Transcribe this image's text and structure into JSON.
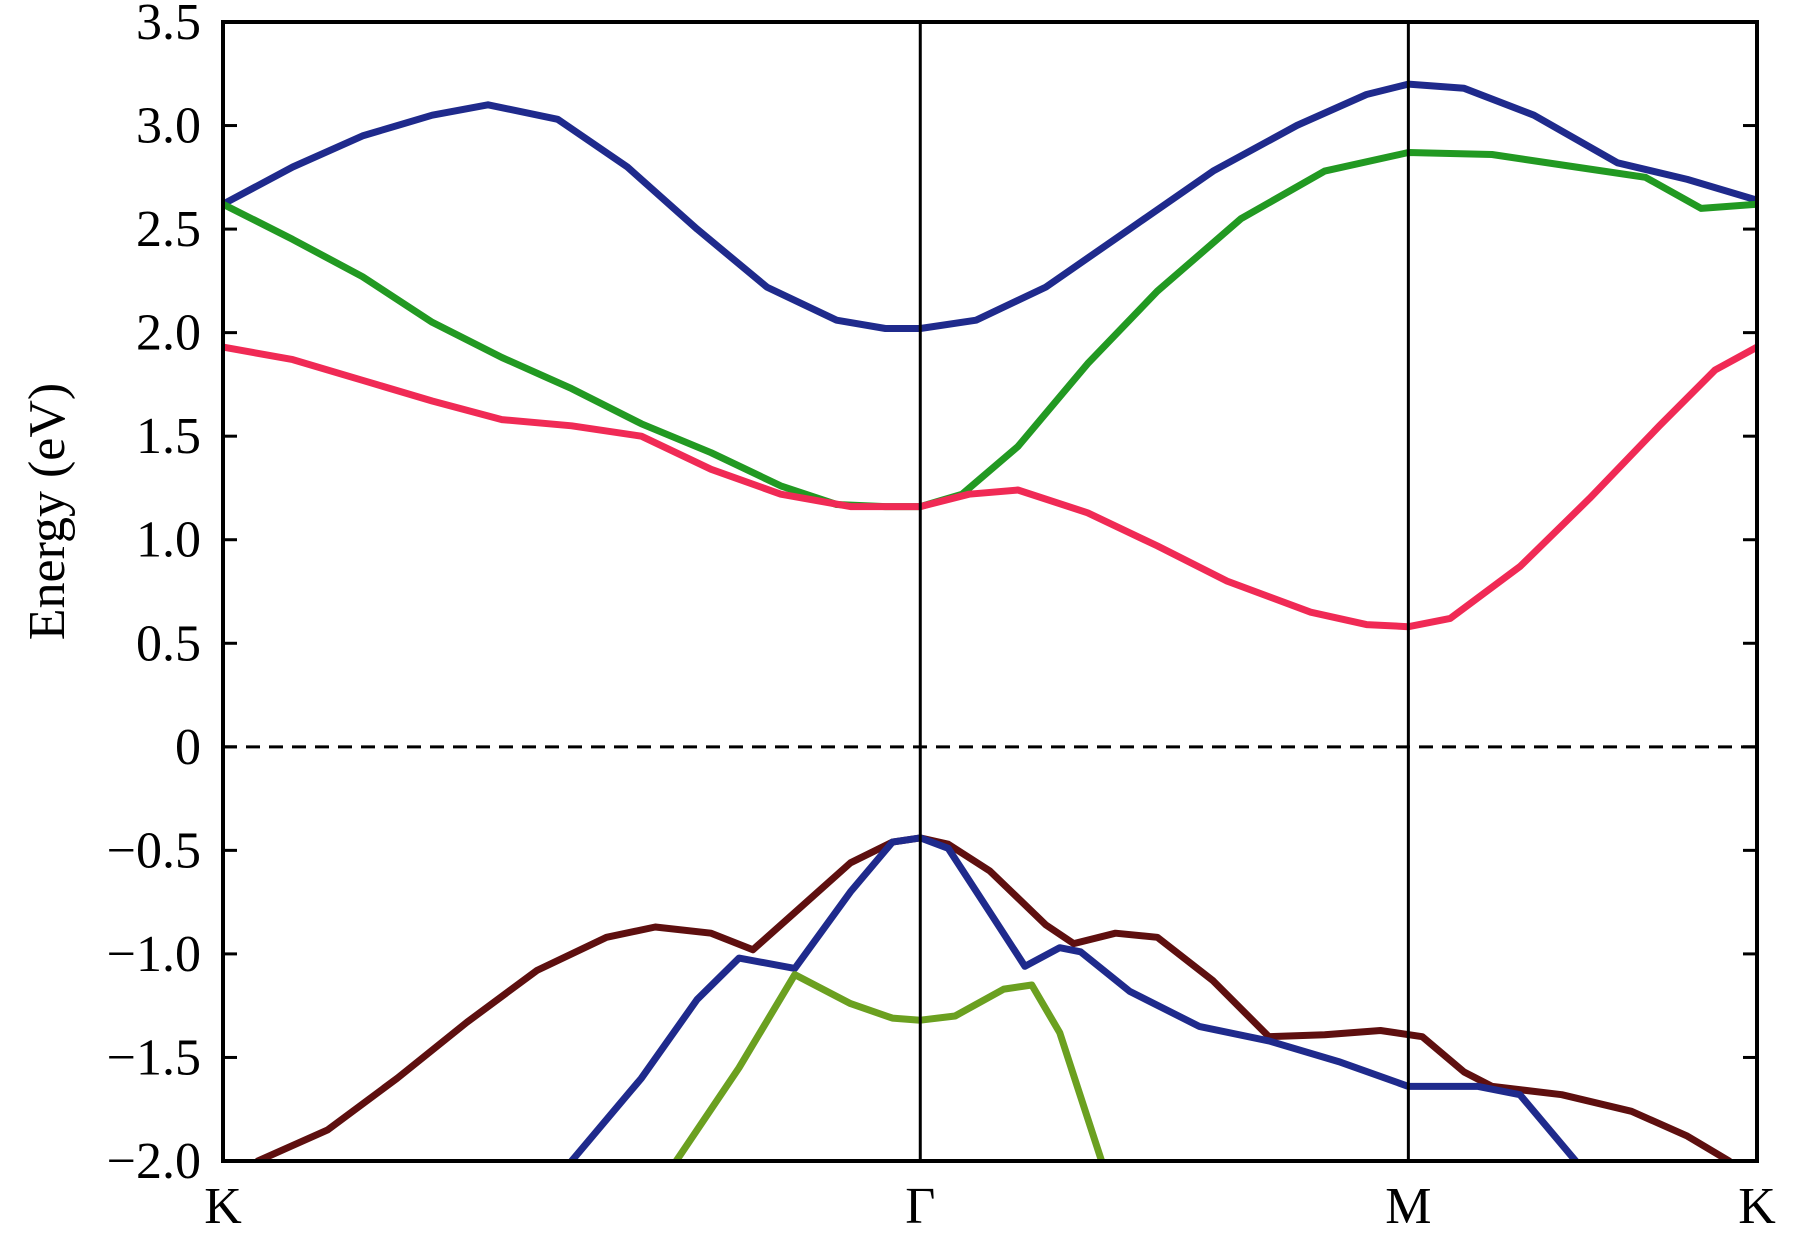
{
  "chart_data": {
    "type": "line",
    "title": "",
    "xlabel": "",
    "ylabel": "Energy (eV)",
    "ylim": [
      -2.0,
      3.5
    ],
    "y_ticks": [
      "3.5",
      "3.0",
      "2.5",
      "2.0",
      "1.5",
      "1.0",
      "0.5",
      "0",
      "−0.5",
      "−1.0",
      "−1.5",
      "−2.0"
    ],
    "y_tick_values": [
      3.5,
      3.0,
      2.5,
      2.0,
      1.5,
      1.0,
      0.5,
      0,
      -0.5,
      -1.0,
      -1.5,
      -2.0
    ],
    "xlim": [
      0,
      3.0
    ],
    "k_points": [
      {
        "label": "K",
        "x": 0.0
      },
      {
        "label": "Γ",
        "x": 1.0
      },
      {
        "label": "M",
        "x": 1.7
      },
      {
        "label": "K",
        "x": 2.2
      }
    ],
    "fermi_level": 0.0,
    "grid": false,
    "legend": "none",
    "series": [
      {
        "color": "#1f2a8c",
        "points": [
          [
            0.0,
            2.62
          ],
          [
            0.1,
            2.8
          ],
          [
            0.2,
            2.95
          ],
          [
            0.3,
            3.05
          ],
          [
            0.38,
            3.1
          ],
          [
            0.48,
            3.03
          ],
          [
            0.58,
            2.8
          ],
          [
            0.68,
            2.5
          ],
          [
            0.78,
            2.22
          ],
          [
            0.88,
            2.06
          ],
          [
            0.95,
            2.02
          ],
          [
            1.0,
            2.02
          ],
          [
            1.08,
            2.06
          ],
          [
            1.18,
            2.22
          ],
          [
            1.3,
            2.5
          ],
          [
            1.42,
            2.78
          ],
          [
            1.54,
            3.0
          ],
          [
            1.64,
            3.15
          ],
          [
            1.7,
            3.2
          ],
          [
            1.78,
            3.18
          ],
          [
            1.88,
            3.05
          ],
          [
            2.0,
            2.82
          ],
          [
            2.1,
            2.74
          ],
          [
            2.2,
            2.64
          ]
        ]
      },
      {
        "color": "#229922",
        "points": [
          [
            0.0,
            2.62
          ],
          [
            0.1,
            2.45
          ],
          [
            0.2,
            2.27
          ],
          [
            0.3,
            2.05
          ],
          [
            0.4,
            1.88
          ],
          [
            0.5,
            1.73
          ],
          [
            0.6,
            1.56
          ],
          [
            0.7,
            1.42
          ],
          [
            0.8,
            1.26
          ],
          [
            0.88,
            1.17
          ],
          [
            0.95,
            1.16
          ],
          [
            1.0,
            1.16
          ],
          [
            1.06,
            1.22
          ],
          [
            1.14,
            1.45
          ],
          [
            1.24,
            1.85
          ],
          [
            1.34,
            2.2
          ],
          [
            1.46,
            2.55
          ],
          [
            1.58,
            2.78
          ],
          [
            1.7,
            2.87
          ],
          [
            1.82,
            2.86
          ],
          [
            1.94,
            2.8
          ],
          [
            2.04,
            2.75
          ],
          [
            2.12,
            2.6
          ],
          [
            2.2,
            2.62
          ]
        ]
      },
      {
        "color": "#f02a55",
        "points": [
          [
            0.0,
            1.93
          ],
          [
            0.1,
            1.87
          ],
          [
            0.2,
            1.77
          ],
          [
            0.3,
            1.67
          ],
          [
            0.4,
            1.58
          ],
          [
            0.5,
            1.55
          ],
          [
            0.6,
            1.5
          ],
          [
            0.7,
            1.34
          ],
          [
            0.8,
            1.22
          ],
          [
            0.9,
            1.16
          ],
          [
            1.0,
            1.16
          ],
          [
            1.07,
            1.22
          ],
          [
            1.14,
            1.24
          ],
          [
            1.24,
            1.13
          ],
          [
            1.34,
            0.97
          ],
          [
            1.44,
            0.8
          ],
          [
            1.56,
            0.65
          ],
          [
            1.64,
            0.59
          ],
          [
            1.7,
            0.58
          ],
          [
            1.76,
            0.62
          ],
          [
            1.86,
            0.87
          ],
          [
            1.96,
            1.2
          ],
          [
            2.06,
            1.55
          ],
          [
            2.14,
            1.82
          ],
          [
            2.2,
            1.93
          ]
        ]
      },
      {
        "color": "#5e0f0f",
        "points": [
          [
            0.05,
            -2.0
          ],
          [
            0.15,
            -1.85
          ],
          [
            0.25,
            -1.6
          ],
          [
            0.35,
            -1.33
          ],
          [
            0.45,
            -1.08
          ],
          [
            0.55,
            -0.92
          ],
          [
            0.62,
            -0.87
          ],
          [
            0.7,
            -0.9
          ],
          [
            0.76,
            -0.98
          ],
          [
            0.82,
            -0.8
          ],
          [
            0.9,
            -0.56
          ],
          [
            0.96,
            -0.46
          ],
          [
            1.0,
            -0.44
          ],
          [
            1.04,
            -0.47
          ],
          [
            1.1,
            -0.6
          ],
          [
            1.18,
            -0.86
          ],
          [
            1.22,
            -0.95
          ],
          [
            1.28,
            -0.9
          ],
          [
            1.34,
            -0.92
          ],
          [
            1.42,
            -1.13
          ],
          [
            1.5,
            -1.4
          ],
          [
            1.58,
            -1.39
          ],
          [
            1.66,
            -1.37
          ],
          [
            1.72,
            -1.4
          ],
          [
            1.78,
            -1.57
          ],
          [
            1.82,
            -1.64
          ],
          [
            1.92,
            -1.68
          ],
          [
            2.02,
            -1.76
          ],
          [
            2.1,
            -1.88
          ],
          [
            2.16,
            -2.0
          ]
        ]
      },
      {
        "color": "#1f2a8c",
        "points": [
          [
            0.5,
            -2.0
          ],
          [
            0.6,
            -1.6
          ],
          [
            0.68,
            -1.22
          ],
          [
            0.74,
            -1.02
          ],
          [
            0.82,
            -1.07
          ],
          [
            0.9,
            -0.7
          ],
          [
            0.96,
            -0.46
          ],
          [
            1.0,
            -0.44
          ],
          [
            1.04,
            -0.49
          ],
          [
            1.1,
            -0.8
          ],
          [
            1.15,
            -1.06
          ],
          [
            1.2,
            -0.97
          ],
          [
            1.23,
            -0.99
          ],
          [
            1.3,
            -1.18
          ],
          [
            1.4,
            -1.35
          ],
          [
            1.5,
            -1.42
          ],
          [
            1.6,
            -1.52
          ],
          [
            1.7,
            -1.64
          ],
          [
            1.8,
            -1.64
          ],
          [
            1.86,
            -1.68
          ],
          [
            1.94,
            -2.0
          ]
        ]
      },
      {
        "color": "#6ba020",
        "points": [
          [
            0.65,
            -2.0
          ],
          [
            0.74,
            -1.55
          ],
          [
            0.82,
            -1.1
          ],
          [
            0.9,
            -1.24
          ],
          [
            0.96,
            -1.31
          ],
          [
            1.0,
            -1.32
          ],
          [
            1.05,
            -1.3
          ],
          [
            1.12,
            -1.17
          ],
          [
            1.16,
            -1.15
          ],
          [
            1.2,
            -1.38
          ],
          [
            1.26,
            -2.0
          ]
        ]
      }
    ]
  }
}
